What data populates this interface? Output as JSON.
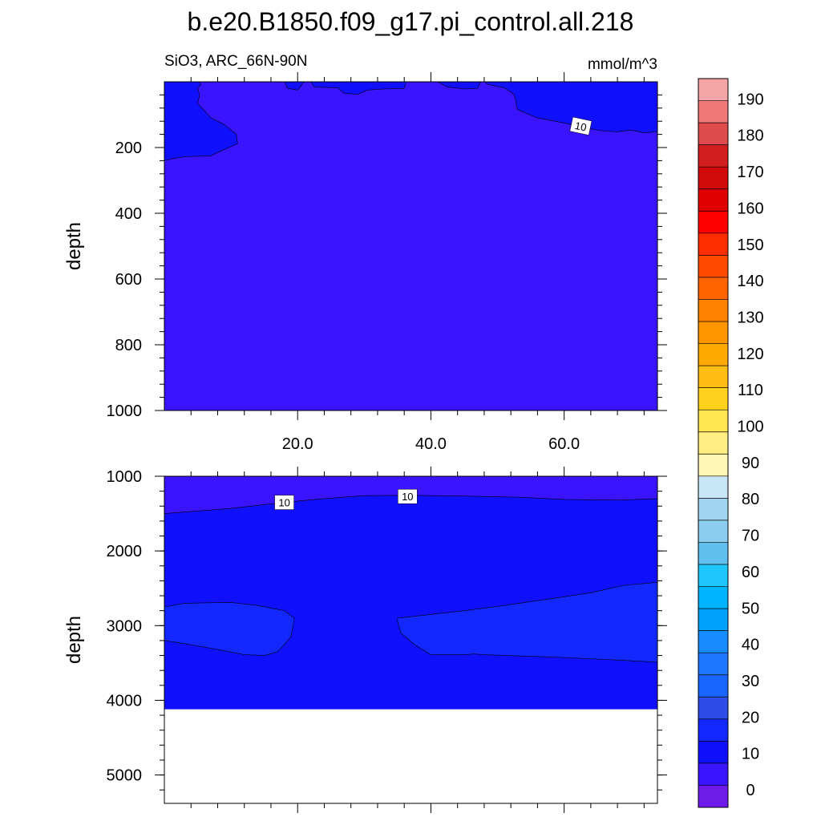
{
  "chart_data": {
    "type": "contour",
    "title": "b.e20.B1850.f09_g17.pi_control.all.218",
    "variable_label": "SiO3, ARC_66N-90N",
    "units": "mmol/m^3",
    "x_tick_labels": [
      "20.0",
      "40.0",
      "60.0"
    ],
    "x_ticks": [
      20,
      40,
      60
    ],
    "xlim": [
      0,
      74
    ],
    "panels": [
      {
        "name": "upper",
        "ylabel": "depth",
        "ylim": [
          0,
          1000
        ],
        "y_ticks": [
          200,
          400,
          600,
          800,
          1000
        ],
        "y_tick_labels": [
          "200",
          "400",
          "600",
          "800",
          "1000"
        ],
        "contour_labels": [
          "10"
        ],
        "background_level_color": "#3b14ff",
        "regions": [
          {
            "fill": "#1010ff",
            "points": [
              [
                0,
                0
              ],
              [
                0,
                240
              ],
              [
                1,
                235
              ],
              [
                3,
                228
              ],
              [
                7,
                225
              ],
              [
                8,
                215
              ],
              [
                11,
                188
              ],
              [
                10.8,
                160
              ],
              [
                9,
                130
              ],
              [
                7,
                110
              ],
              [
                5,
                65
              ],
              [
                5.3,
                40
              ],
              [
                5,
                20
              ],
              [
                5.5,
                8
              ],
              [
                5.2,
                0
              ]
            ]
          },
          {
            "fill": "#1010ff",
            "points": [
              [
                48,
                0
              ],
              [
                48.6,
                8
              ],
              [
                51,
                18
              ],
              [
                52.5,
                38
              ],
              [
                53,
                85
              ],
              [
                56,
                110
              ],
              [
                60,
                125
              ],
              [
                63,
                140
              ],
              [
                66,
                150
              ],
              [
                68,
                152
              ],
              [
                70,
                147
              ],
              [
                72,
                155
              ],
              [
                74,
                152
              ],
              [
                74,
                0
              ]
            ]
          },
          {
            "fill": "#1010ff",
            "points": [
              [
                18,
                0
              ],
              [
                18.5,
                20
              ],
              [
                20,
                25
              ],
              [
                21,
                0
              ]
            ]
          },
          {
            "fill": "#1010ff",
            "points": [
              [
                22,
                0
              ],
              [
                22.5,
                16
              ],
              [
                26,
                18
              ],
              [
                27,
                35
              ],
              [
                29,
                38
              ],
              [
                30.5,
                25
              ],
              [
                33,
                22
              ],
              [
                36,
                20
              ],
              [
                36.3,
                0
              ]
            ]
          },
          {
            "fill": "#1010ff",
            "points": [
              [
                41,
                0
              ],
              [
                42.5,
                16
              ],
              [
                45,
                22
              ],
              [
                47,
                20
              ],
              [
                47.5,
                0
              ]
            ]
          }
        ]
      },
      {
        "name": "lower",
        "ylabel": "depth",
        "ylim": [
          1000,
          5380
        ],
        "y_ticks": [
          1000,
          2000,
          3000,
          4000,
          5000
        ],
        "y_tick_labels": [
          "1000",
          "2000",
          "3000",
          "4000",
          "5000"
        ],
        "ocean_bottom_depth": 4120,
        "contour_labels": [
          "10",
          "10"
        ],
        "background_level_color": "#1010ff",
        "regions": [
          {
            "fill": "#3b14ff",
            "points": [
              [
                0,
                1000
              ],
              [
                74,
                1000
              ],
              [
                74,
                1300
              ],
              [
                68,
                1320
              ],
              [
                60,
                1310
              ],
              [
                53,
                1280
              ],
              [
                45,
                1265
              ],
              [
                37,
                1255
              ],
              [
                30,
                1260
              ],
              [
                24,
                1300
              ],
              [
                18,
                1350
              ],
              [
                10,
                1430
              ],
              [
                0,
                1500
              ]
            ]
          },
          {
            "fill": "#1228ff",
            "points": [
              [
                0,
                2750
              ],
              [
                3,
                2700
              ],
              [
                10,
                2690
              ],
              [
                14,
                2730
              ],
              [
                18,
                2800
              ],
              [
                19.5,
                2900
              ],
              [
                19,
                3150
              ],
              [
                17,
                3350
              ],
              [
                15,
                3400
              ],
              [
                12,
                3390
              ],
              [
                8,
                3320
              ],
              [
                3,
                3240
              ],
              [
                0,
                3200
              ]
            ]
          },
          {
            "fill": "#1228ff",
            "points": [
              [
                35,
                2900
              ],
              [
                38,
                2870
              ],
              [
                45,
                2800
              ],
              [
                51,
                2730
              ],
              [
                58,
                2640
              ],
              [
                64,
                2560
              ],
              [
                69,
                2460
              ],
              [
                74,
                2420
              ],
              [
                74,
                3490
              ],
              [
                68,
                3460
              ],
              [
                58,
                3420
              ],
              [
                48,
                3390
              ],
              [
                46.5,
                3380
              ],
              [
                45,
                3390
              ],
              [
                40,
                3390
              ],
              [
                37.5,
                3250
              ],
              [
                35.5,
                3100
              ],
              [
                35,
                2950
              ]
            ]
          }
        ]
      }
    ],
    "colorbar": {
      "labels": [
        "0",
        "10",
        "20",
        "30",
        "40",
        "50",
        "60",
        "70",
        "80",
        "90",
        "100",
        "110",
        "120",
        "130",
        "140",
        "150",
        "160",
        "170",
        "180",
        "190"
      ],
      "colors": [
        "#6e1ae8",
        "#3b14ff",
        "#1010ff",
        "#1228ff",
        "#2e4de6",
        "#1a64ff",
        "#1e78ff",
        "#168cff",
        "#00a0ff",
        "#00b4ff",
        "#1ec8ff",
        "#62c0f0",
        "#8ccdf0",
        "#a0d4f0",
        "#c8e6f5",
        "#fff5b4",
        "#ffee82",
        "#ffe650",
        "#ffd21e",
        "#ffbe14",
        "#ffaa00",
        "#ff9600",
        "#ff8200",
        "#ff6400",
        "#ff4a00",
        "#ff2d00",
        "#ff0000",
        "#e10000",
        "#d20a0a",
        "#d21e1e",
        "#e04b4b",
        "#f07878",
        "#f5a5a5"
      ]
    }
  }
}
